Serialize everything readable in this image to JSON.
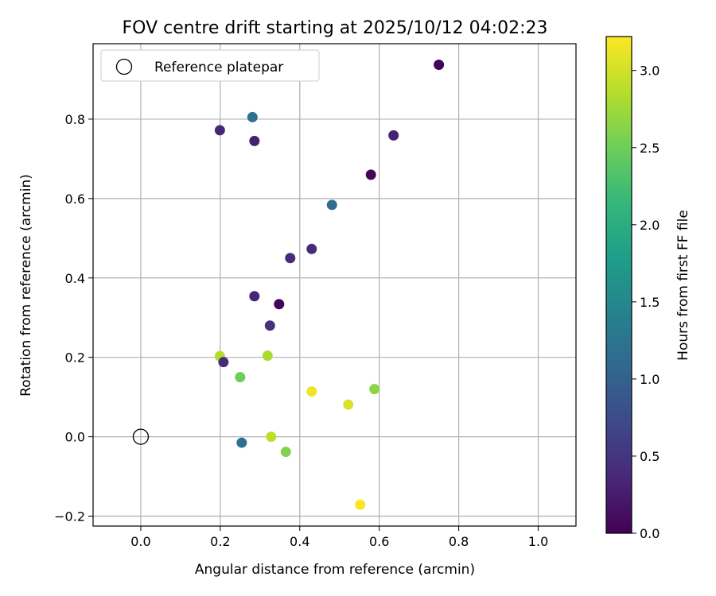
{
  "chart_data": {
    "type": "scatter",
    "title": "FOV centre drift starting at 2025/10/12 04:02:23",
    "xlabel": "Angular distance from reference (arcmin)",
    "ylabel": "Rotation from reference (arcmin)",
    "xlim": [
      -0.12,
      1.095
    ],
    "ylim": [
      -0.225,
      0.99
    ],
    "xticks": [
      0.0,
      0.2,
      0.4,
      0.6,
      0.8,
      1.0
    ],
    "xtick_labels": [
      "0.0",
      "0.2",
      "0.4",
      "0.6",
      "0.8",
      "1.0"
    ],
    "yticks": [
      -0.2,
      0.0,
      0.2,
      0.4,
      0.6,
      0.8
    ],
    "ytick_labels": [
      "−0.2",
      "0.0",
      "0.2",
      "0.4",
      "0.6",
      "0.8"
    ],
    "grid": true,
    "legend": {
      "placement": "top-left",
      "entries": [
        {
          "label": "Reference platepar",
          "marker": "open-circle",
          "color": "#000000"
        }
      ]
    },
    "reference_point": {
      "x": 0.0,
      "y": 0.0
    },
    "colorbar": {
      "label": "Hours from first FF file",
      "colormap": "viridis",
      "range": [
        0.0,
        3.22
      ],
      "ticks": [
        0.0,
        0.5,
        1.0,
        1.5,
        2.0,
        2.5,
        3.0
      ],
      "tick_labels": [
        "0.0",
        "0.5",
        "1.0",
        "1.5",
        "2.0",
        "2.5",
        "3.0"
      ]
    },
    "points": [
      {
        "x": 0.75,
        "y": 0.937,
        "hours": 0.03
      },
      {
        "x": 0.281,
        "y": 0.805,
        "hours": 1.2
      },
      {
        "x": 0.199,
        "y": 0.772,
        "hours": 0.35
      },
      {
        "x": 0.286,
        "y": 0.745,
        "hours": 0.3
      },
      {
        "x": 0.636,
        "y": 0.759,
        "hours": 0.3
      },
      {
        "x": 0.579,
        "y": 0.66,
        "hours": 0.05
      },
      {
        "x": 0.481,
        "y": 0.584,
        "hours": 1.15
      },
      {
        "x": 0.376,
        "y": 0.45,
        "hours": 0.4
      },
      {
        "x": 0.43,
        "y": 0.473,
        "hours": 0.4
      },
      {
        "x": 0.286,
        "y": 0.354,
        "hours": 0.35
      },
      {
        "x": 0.348,
        "y": 0.334,
        "hours": 0.05
      },
      {
        "x": 0.325,
        "y": 0.28,
        "hours": 0.45
      },
      {
        "x": 0.199,
        "y": 0.203,
        "hours": 2.85
      },
      {
        "x": 0.208,
        "y": 0.188,
        "hours": 0.4
      },
      {
        "x": 0.319,
        "y": 0.204,
        "hours": 2.8
      },
      {
        "x": 0.25,
        "y": 0.15,
        "hours": 2.5
      },
      {
        "x": 0.43,
        "y": 0.114,
        "hours": 3.15
      },
      {
        "x": 0.588,
        "y": 0.12,
        "hours": 2.65
      },
      {
        "x": 0.522,
        "y": 0.081,
        "hours": 3.05
      },
      {
        "x": 0.254,
        "y": -0.015,
        "hours": 1.2
      },
      {
        "x": 0.328,
        "y": 0.0,
        "hours": 2.9
      },
      {
        "x": 0.365,
        "y": -0.038,
        "hours": 2.6
      },
      {
        "x": 0.552,
        "y": -0.171,
        "hours": 3.2
      }
    ]
  }
}
